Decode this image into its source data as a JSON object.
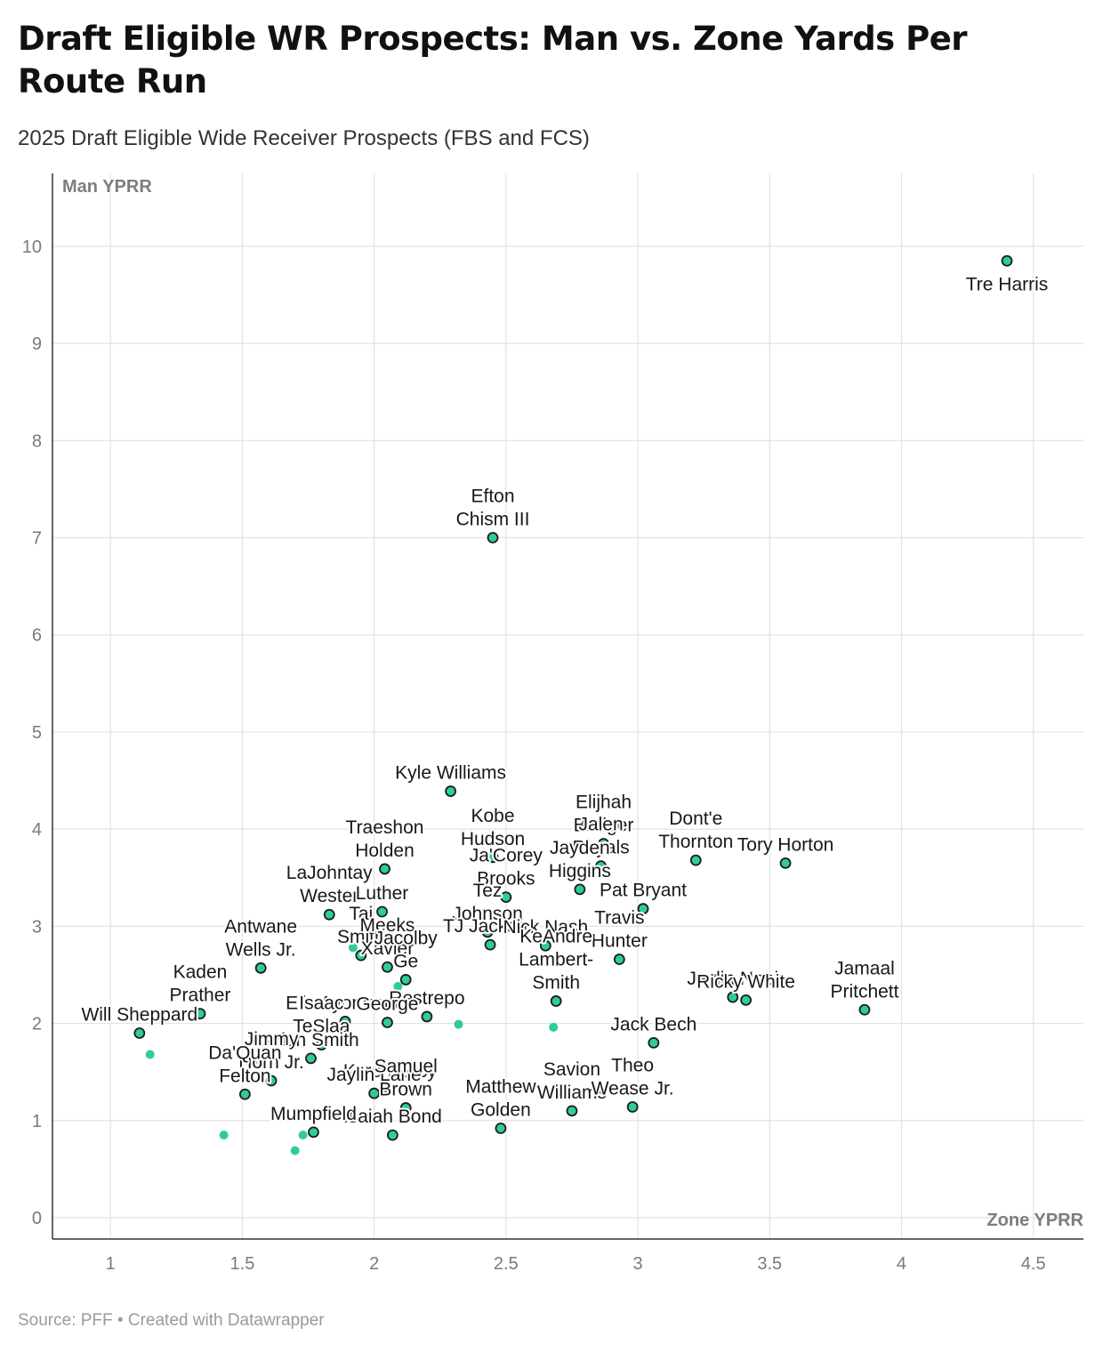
{
  "title": "Draft Eligible WR Prospects: Man vs. Zone Yards Per Route Run",
  "subtitle": "2025 Draft Eligible Wide Receiver Prospects (FBS and FCS)",
  "footer": {
    "source": "Source: PFF",
    "separator": "•",
    "credit": "Created with Datawrapper"
  },
  "colors": {
    "point": "#2ecc9a",
    "point_stroke": "#1c1c1c",
    "grid": "#e2e2e2",
    "axis": "#333333",
    "tick": "#7a7a7a"
  },
  "chart_data": {
    "type": "scatter",
    "xlabel": "Zone YPRR",
    "ylabel": "Man YPRR",
    "xlim": [
      0.78,
      4.69
    ],
    "ylim": [
      -0.22,
      10.75
    ],
    "xticks": [
      "1",
      "1.5",
      "2",
      "2.5",
      "3",
      "3.5",
      "4",
      "4.5"
    ],
    "yticks": [
      "0",
      "1",
      "2",
      "3",
      "4",
      "5",
      "6",
      "7",
      "8",
      "9",
      "10"
    ],
    "grid": true,
    "points": [
      {
        "x": 4.4,
        "y": 9.85,
        "label": [
          "Tre Harris"
        ],
        "labelled": true
      },
      {
        "x": 2.45,
        "y": 7.0,
        "label": [
          "Efton",
          "Chism III"
        ],
        "labelled": true
      },
      {
        "x": 2.29,
        "y": 4.39,
        "label": [
          "Kyle Williams"
        ],
        "labelled": true
      },
      {
        "x": 2.45,
        "y": 3.71,
        "label": [
          "Kobe",
          "Hudson"
        ],
        "labelled": true
      },
      {
        "x": 2.87,
        "y": 3.85,
        "label": [
          "Elijhah",
          "Badger"
        ],
        "labelled": true
      },
      {
        "x": 3.22,
        "y": 3.68,
        "label": [
          "Dont'e",
          "Thornton"
        ],
        "labelled": true
      },
      {
        "x": 3.56,
        "y": 3.65,
        "label": [
          "Tory Horton"
        ],
        "labelled": true
      },
      {
        "x": 2.86,
        "y": 3.62,
        "label": [
          "Jalen",
          "Royals"
        ],
        "labelled": true
      },
      {
        "x": 3.02,
        "y": 3.18,
        "label": [
          "Pat Bryant"
        ],
        "labelled": true
      },
      {
        "x": 2.04,
        "y": 3.59,
        "label": [
          "Traeshon",
          "Holden"
        ],
        "labelled": true
      },
      {
        "x": 1.83,
        "y": 3.12,
        "label": [
          "LaJohntay",
          "Wester"
        ],
        "labelled": true
      },
      {
        "x": 2.03,
        "y": 3.15,
        "label": [
          "Luther"
        ],
        "labelled": true
      },
      {
        "x": 2.5,
        "y": 3.3,
        "label": [
          "Ja'Corey",
          "Brooks"
        ],
        "labelled": true
      },
      {
        "x": 2.78,
        "y": 3.38,
        "label": [
          "Jayden",
          "Higgins"
        ],
        "labelled": true
      },
      {
        "x": 2.43,
        "y": 2.94,
        "label": [
          "Tez",
          "Johnson"
        ],
        "labelled": true
      },
      {
        "x": 2.44,
        "y": 2.81,
        "label": [
          "TJ Jackson"
        ],
        "labelled": true
      },
      {
        "x": 2.65,
        "y": 2.8,
        "label": [
          "Nick Nash"
        ],
        "labelled": true
      },
      {
        "x": 2.93,
        "y": 2.66,
        "label": [
          "Travis",
          "Hunter"
        ],
        "labelled": true
      },
      {
        "x": 1.95,
        "y": 2.7,
        "label": [
          "Tai",
          "Smith"
        ],
        "labelled": true
      },
      {
        "x": 1.92,
        "y": 2.78,
        "label": [],
        "labelled": false
      },
      {
        "x": 2.05,
        "y": 2.58,
        "label": [
          "Meeks",
          "Xavier"
        ],
        "labelled": true
      },
      {
        "x": 1.57,
        "y": 2.57,
        "label": [
          "Antwane",
          "Wells Jr."
        ],
        "labelled": true
      },
      {
        "x": 2.12,
        "y": 2.45,
        "label": [
          "Jacolby",
          "Ge"
        ],
        "labelled": true
      },
      {
        "x": 2.09,
        "y": 2.38,
        "label": [],
        "labelled": false
      },
      {
        "x": 1.34,
        "y": 2.1,
        "label": [
          "Kaden",
          "Prather"
        ],
        "labelled": true
      },
      {
        "x": 1.89,
        "y": 2.02,
        "label": [
          "Elic Ayomanor"
        ],
        "labelled": true
      },
      {
        "x": 2.2,
        "y": 2.07,
        "label": [
          "Restrepo"
        ],
        "labelled": true
      },
      {
        "x": 2.05,
        "y": 2.01,
        "label": [
          "George"
        ],
        "labelled": true
      },
      {
        "x": 2.32,
        "y": 1.99,
        "label": [],
        "labelled": false
      },
      {
        "x": 2.69,
        "y": 2.23,
        "label": [
          "KeAndre",
          "Lambert-",
          "Smith"
        ],
        "labelled": true
      },
      {
        "x": 2.68,
        "y": 1.96,
        "label": [],
        "labelled": false
      },
      {
        "x": 3.36,
        "y": 2.27,
        "label": [
          "Jaylin Noel"
        ],
        "labelled": true
      },
      {
        "x": 3.41,
        "y": 2.24,
        "label": [
          "Ricky White"
        ],
        "labelled": true
      },
      {
        "x": 3.86,
        "y": 2.14,
        "label": [
          "Jamaal",
          "Pritchett"
        ],
        "labelled": true
      },
      {
        "x": 3.06,
        "y": 1.8,
        "label": [
          "Jack Bech"
        ],
        "labelled": true
      },
      {
        "x": 1.11,
        "y": 1.9,
        "label": [
          "Will Sheppard"
        ],
        "labelled": true
      },
      {
        "x": 1.15,
        "y": 1.68,
        "label": [],
        "labelled": false
      },
      {
        "x": 1.8,
        "y": 1.78,
        "label": [
          "Isaac",
          "TeSlaa"
        ],
        "labelled": true
      },
      {
        "x": 1.76,
        "y": 1.64,
        "label": [
          "Arian Smith"
        ],
        "labelled": true
      },
      {
        "x": 1.54,
        "y": 1.6,
        "label": [],
        "labelled": false
      },
      {
        "x": 2.06,
        "y": 1.32,
        "label": [
          "Kyren Lacy"
        ],
        "labelled": true
      },
      {
        "x": 2.0,
        "y": 1.28,
        "label": [
          "Jaylin Lane"
        ],
        "labelled": true
      },
      {
        "x": 1.61,
        "y": 1.41,
        "label": [
          "Jimmy",
          "Horn Jr."
        ],
        "labelled": true
      },
      {
        "x": 1.51,
        "y": 1.27,
        "label": [
          "Da'Quan",
          "Felton"
        ],
        "labelled": true
      },
      {
        "x": 1.43,
        "y": 0.85,
        "label": [],
        "labelled": false
      },
      {
        "x": 2.12,
        "y": 1.13,
        "label": [
          "Samuel",
          "Brown"
        ],
        "labelled": true
      },
      {
        "x": 2.75,
        "y": 1.1,
        "label": [
          "Savion",
          "Williams"
        ],
        "labelled": true
      },
      {
        "x": 2.98,
        "y": 1.14,
        "label": [
          "Theo",
          "Wease Jr."
        ],
        "labelled": true
      },
      {
        "x": 2.48,
        "y": 0.92,
        "label": [
          "Matthew",
          "Golden"
        ],
        "labelled": true
      },
      {
        "x": 2.07,
        "y": 0.85,
        "label": [
          "Isaiah Bond"
        ],
        "labelled": true
      },
      {
        "x": 1.77,
        "y": 0.88,
        "label": [
          "Mumpfield"
        ],
        "labelled": true
      },
      {
        "x": 1.73,
        "y": 0.85,
        "label": [],
        "labelled": false
      },
      {
        "x": 1.7,
        "y": 0.69,
        "label": [],
        "labelled": false
      }
    ]
  }
}
